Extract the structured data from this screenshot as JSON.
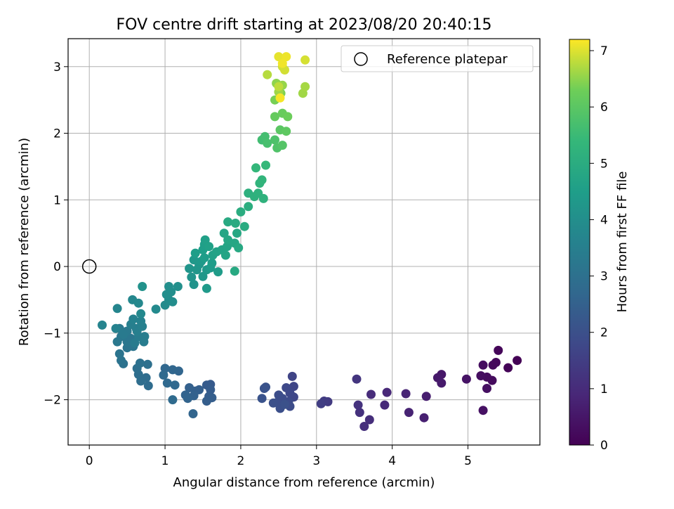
{
  "chart_data": {
    "type": "scatter",
    "title": "FOV centre drift starting at 2023/08/20 20:40:15",
    "xlabel": "Angular distance from reference (arcmin)",
    "ylabel": "Rotation from reference (arcmin)",
    "xlim": [
      -0.28,
      5.95
    ],
    "ylim": [
      -2.68,
      3.42
    ],
    "xticks": [
      0,
      1,
      2,
      3,
      4,
      5
    ],
    "yticks": [
      -2,
      -1,
      0,
      1,
      2,
      3
    ],
    "xtick_labels": [
      "0",
      "1",
      "2",
      "3",
      "4",
      "5"
    ],
    "ytick_labels": [
      "−2",
      "−1",
      "0",
      "1",
      "2",
      "3"
    ],
    "grid": true,
    "legend": {
      "placement": "top-right",
      "entries": [
        {
          "label": "Reference platepar",
          "marker": "open-circle"
        }
      ]
    },
    "reference_point": {
      "x": 0,
      "y": 0
    },
    "colorbar": {
      "label": "Hours from first FF file",
      "colormap": "viridis",
      "range": [
        0,
        7.2
      ],
      "ticks": [
        0,
        1,
        2,
        3,
        4,
        5,
        6,
        7
      ],
      "tick_labels": [
        "0",
        "1",
        "2",
        "3",
        "4",
        "5",
        "6",
        "7"
      ]
    },
    "points": [
      {
        "x": 5.65,
        "y": -1.41,
        "h": 0.03
      },
      {
        "x": 5.53,
        "y": -1.52,
        "h": 0.08
      },
      {
        "x": 5.4,
        "y": -1.26,
        "h": 0.12
      },
      {
        "x": 5.37,
        "y": -1.44,
        "h": 0.15
      },
      {
        "x": 5.33,
        "y": -1.48,
        "h": 0.18
      },
      {
        "x": 5.32,
        "y": -1.71,
        "h": 0.22
      },
      {
        "x": 5.25,
        "y": -1.66,
        "h": 0.25
      },
      {
        "x": 5.2,
        "y": -1.48,
        "h": 0.28
      },
      {
        "x": 5.17,
        "y": -1.64,
        "h": 0.3
      },
      {
        "x": 5.25,
        "y": -1.83,
        "h": 0.33
      },
      {
        "x": 5.2,
        "y": -2.16,
        "h": 0.37
      },
      {
        "x": 4.98,
        "y": -1.69,
        "h": 0.42
      },
      {
        "x": 4.65,
        "y": -1.62,
        "h": 0.5
      },
      {
        "x": 4.6,
        "y": -1.67,
        "h": 0.55
      },
      {
        "x": 4.65,
        "y": -1.75,
        "h": 0.6
      },
      {
        "x": 4.45,
        "y": -1.95,
        "h": 0.68
      },
      {
        "x": 4.42,
        "y": -2.27,
        "h": 0.72
      },
      {
        "x": 4.22,
        "y": -2.19,
        "h": 0.78
      },
      {
        "x": 4.18,
        "y": -1.91,
        "h": 0.83
      },
      {
        "x": 3.93,
        "y": -1.89,
        "h": 0.9
      },
      {
        "x": 3.9,
        "y": -2.08,
        "h": 0.95
      },
      {
        "x": 3.72,
        "y": -1.92,
        "h": 1.0
      },
      {
        "x": 3.7,
        "y": -2.3,
        "h": 1.05
      },
      {
        "x": 3.63,
        "y": -2.4,
        "h": 1.1
      },
      {
        "x": 3.57,
        "y": -2.19,
        "h": 1.15
      },
      {
        "x": 3.55,
        "y": -2.08,
        "h": 1.2
      },
      {
        "x": 3.53,
        "y": -1.69,
        "h": 1.25
      },
      {
        "x": 3.15,
        "y": -2.03,
        "h": 1.4
      },
      {
        "x": 3.1,
        "y": -2.02,
        "h": 1.45
      },
      {
        "x": 3.06,
        "y": -2.06,
        "h": 1.5
      },
      {
        "x": 2.68,
        "y": -1.65,
        "h": 1.65
      },
      {
        "x": 2.7,
        "y": -1.8,
        "h": 1.7
      },
      {
        "x": 2.7,
        "y": -1.96,
        "h": 1.75
      },
      {
        "x": 2.65,
        "y": -1.9,
        "h": 1.78
      },
      {
        "x": 2.6,
        "y": -1.82,
        "h": 1.8
      },
      {
        "x": 2.63,
        "y": -2.03,
        "h": 1.85
      },
      {
        "x": 2.65,
        "y": -2.1,
        "h": 1.88
      },
      {
        "x": 2.55,
        "y": -1.98,
        "h": 1.9
      },
      {
        "x": 2.5,
        "y": -1.93,
        "h": 1.93
      },
      {
        "x": 2.48,
        "y": -2.04,
        "h": 1.95
      },
      {
        "x": 2.52,
        "y": -2.13,
        "h": 1.98
      },
      {
        "x": 2.43,
        "y": -2.05,
        "h": 2.0
      },
      {
        "x": 2.58,
        "y": -2.07,
        "h": 2.02
      },
      {
        "x": 2.33,
        "y": -1.81,
        "h": 2.05
      },
      {
        "x": 2.31,
        "y": -1.83,
        "h": 2.08
      },
      {
        "x": 2.28,
        "y": -1.98,
        "h": 2.1
      },
      {
        "x": 1.6,
        "y": -1.77,
        "h": 2.3
      },
      {
        "x": 1.55,
        "y": -1.78,
        "h": 2.33
      },
      {
        "x": 1.6,
        "y": -1.85,
        "h": 2.35
      },
      {
        "x": 1.58,
        "y": -1.95,
        "h": 2.38
      },
      {
        "x": 1.62,
        "y": -1.97,
        "h": 2.4
      },
      {
        "x": 1.55,
        "y": -2.02,
        "h": 2.42
      },
      {
        "x": 1.45,
        "y": -1.85,
        "h": 2.45
      },
      {
        "x": 1.4,
        "y": -1.87,
        "h": 2.48
      },
      {
        "x": 1.32,
        "y": -1.82,
        "h": 2.5
      },
      {
        "x": 1.38,
        "y": -1.94,
        "h": 2.52
      },
      {
        "x": 1.27,
        "y": -1.93,
        "h": 2.55
      },
      {
        "x": 1.3,
        "y": -1.98,
        "h": 2.58
      },
      {
        "x": 1.37,
        "y": -2.21,
        "h": 2.6
      },
      {
        "x": 1.18,
        "y": -1.57,
        "h": 2.65
      },
      {
        "x": 1.1,
        "y": -1.55,
        "h": 2.68
      },
      {
        "x": 1.0,
        "y": -1.53,
        "h": 2.7
      },
      {
        "x": 1.13,
        "y": -1.78,
        "h": 2.73
      },
      {
        "x": 1.03,
        "y": -1.75,
        "h": 2.75
      },
      {
        "x": 0.98,
        "y": -1.63,
        "h": 2.78
      },
      {
        "x": 1.1,
        "y": -2.0,
        "h": 2.8
      },
      {
        "x": 0.78,
        "y": -1.79,
        "h": 2.85
      },
      {
        "x": 0.75,
        "y": -1.67,
        "h": 2.88
      },
      {
        "x": 0.68,
        "y": -1.72,
        "h": 2.9
      },
      {
        "x": 0.65,
        "y": -1.62,
        "h": 2.92
      },
      {
        "x": 0.63,
        "y": -1.53,
        "h": 2.95
      },
      {
        "x": 0.77,
        "y": -1.47,
        "h": 2.98
      },
      {
        "x": 0.67,
        "y": -1.45,
        "h": 3.0
      },
      {
        "x": 0.45,
        "y": -1.46,
        "h": 3.05
      },
      {
        "x": 0.42,
        "y": -1.41,
        "h": 3.08
      },
      {
        "x": 0.4,
        "y": -1.31,
        "h": 3.1
      },
      {
        "x": 0.5,
        "y": -1.22,
        "h": 3.13
      },
      {
        "x": 0.58,
        "y": -1.2,
        "h": 3.15
      },
      {
        "x": 0.5,
        "y": -1.13,
        "h": 3.18
      },
      {
        "x": 0.55,
        "y": -1.08,
        "h": 3.2
      },
      {
        "x": 0.42,
        "y": -1.05,
        "h": 3.23
      },
      {
        "x": 0.37,
        "y": -1.13,
        "h": 3.25
      },
      {
        "x": 0.5,
        "y": -0.97,
        "h": 3.28
      },
      {
        "x": 0.4,
        "y": -0.93,
        "h": 3.3
      },
      {
        "x": 0.45,
        "y": -1.02,
        "h": 3.33
      },
      {
        "x": 0.6,
        "y": -1.15,
        "h": 3.35
      },
      {
        "x": 0.65,
        "y": -1.05,
        "h": 3.38
      },
      {
        "x": 0.72,
        "y": -1.13,
        "h": 3.4
      },
      {
        "x": 0.73,
        "y": -1.05,
        "h": 3.42
      },
      {
        "x": 0.62,
        "y": -0.93,
        "h": 3.45
      },
      {
        "x": 0.55,
        "y": -0.87,
        "h": 3.48
      },
      {
        "x": 0.63,
        "y": -0.97,
        "h": 3.5
      },
      {
        "x": 0.7,
        "y": -0.9,
        "h": 3.52
      },
      {
        "x": 0.68,
        "y": -0.82,
        "h": 3.55
      },
      {
        "x": 0.58,
        "y": -0.79,
        "h": 3.58
      },
      {
        "x": 0.35,
        "y": -0.93,
        "h": 3.6
      },
      {
        "x": 0.17,
        "y": -0.88,
        "h": 3.65
      },
      {
        "x": 0.37,
        "y": -0.63,
        "h": 3.7
      },
      {
        "x": 0.57,
        "y": -0.5,
        "h": 3.75
      },
      {
        "x": 0.65,
        "y": -0.55,
        "h": 3.78
      },
      {
        "x": 0.68,
        "y": -0.71,
        "h": 3.8
      },
      {
        "x": 0.88,
        "y": -0.64,
        "h": 3.85
      },
      {
        "x": 1.0,
        "y": -0.58,
        "h": 3.9
      },
      {
        "x": 1.05,
        "y": -0.5,
        "h": 3.93
      },
      {
        "x": 1.1,
        "y": -0.53,
        "h": 3.95
      },
      {
        "x": 1.02,
        "y": -0.42,
        "h": 3.97
      },
      {
        "x": 1.08,
        "y": -0.38,
        "h": 4.0
      },
      {
        "x": 1.05,
        "y": -0.3,
        "h": 4.03
      },
      {
        "x": 1.17,
        "y": -0.3,
        "h": 4.05
      },
      {
        "x": 0.7,
        "y": -0.3,
        "h": 4.1
      },
      {
        "x": 1.38,
        "y": -0.27,
        "h": 4.15
      },
      {
        "x": 1.35,
        "y": -0.16,
        "h": 4.18
      },
      {
        "x": 1.32,
        "y": -0.03,
        "h": 4.2
      },
      {
        "x": 1.45,
        "y": 0.03,
        "h": 4.23
      },
      {
        "x": 1.42,
        "y": -0.05,
        "h": 4.25
      },
      {
        "x": 1.5,
        "y": -0.15,
        "h": 4.28
      },
      {
        "x": 1.38,
        "y": 0.1,
        "h": 4.3
      },
      {
        "x": 1.48,
        "y": 0.08,
        "h": 4.33
      },
      {
        "x": 1.55,
        "y": -0.05,
        "h": 4.35
      },
      {
        "x": 1.55,
        "y": -0.33,
        "h": 4.38
      },
      {
        "x": 1.6,
        "y": -0.02,
        "h": 4.4
      },
      {
        "x": 1.7,
        "y": -0.08,
        "h": 4.42
      },
      {
        "x": 1.62,
        "y": 0.05,
        "h": 4.45
      },
      {
        "x": 1.52,
        "y": 0.13,
        "h": 4.48
      },
      {
        "x": 1.4,
        "y": 0.2,
        "h": 4.5
      },
      {
        "x": 1.5,
        "y": 0.25,
        "h": 4.52
      },
      {
        "x": 1.52,
        "y": 0.33,
        "h": 4.55
      },
      {
        "x": 1.53,
        "y": 0.4,
        "h": 4.58
      },
      {
        "x": 1.58,
        "y": 0.3,
        "h": 4.6
      },
      {
        "x": 1.63,
        "y": 0.17,
        "h": 4.62
      },
      {
        "x": 1.68,
        "y": 0.22,
        "h": 4.65
      },
      {
        "x": 1.75,
        "y": 0.25,
        "h": 4.68
      },
      {
        "x": 1.82,
        "y": 0.3,
        "h": 4.7
      },
      {
        "x": 1.8,
        "y": 0.17,
        "h": 4.72
      },
      {
        "x": 1.78,
        "y": 0.5,
        "h": 4.75
      },
      {
        "x": 1.83,
        "y": 0.4,
        "h": 4.78
      },
      {
        "x": 1.92,
        "y": 0.35,
        "h": 4.8
      },
      {
        "x": 1.95,
        "y": 0.5,
        "h": 4.82
      },
      {
        "x": 1.97,
        "y": 0.28,
        "h": 4.85
      },
      {
        "x": 1.92,
        "y": -0.07,
        "h": 4.88
      },
      {
        "x": 1.83,
        "y": 0.67,
        "h": 4.9
      },
      {
        "x": 1.93,
        "y": 0.65,
        "h": 4.93
      },
      {
        "x": 2.05,
        "y": 0.6,
        "h": 4.95
      },
      {
        "x": 2.0,
        "y": 0.82,
        "h": 5.0
      },
      {
        "x": 2.1,
        "y": 0.9,
        "h": 5.05
      },
      {
        "x": 2.1,
        "y": 1.1,
        "h": 5.1
      },
      {
        "x": 2.18,
        "y": 1.05,
        "h": 5.15
      },
      {
        "x": 2.23,
        "y": 1.1,
        "h": 5.18
      },
      {
        "x": 2.3,
        "y": 1.02,
        "h": 5.2
      },
      {
        "x": 2.25,
        "y": 1.25,
        "h": 5.25
      },
      {
        "x": 2.28,
        "y": 1.3,
        "h": 5.28
      },
      {
        "x": 2.2,
        "y": 1.48,
        "h": 5.35
      },
      {
        "x": 2.33,
        "y": 1.52,
        "h": 5.4
      },
      {
        "x": 2.28,
        "y": 1.9,
        "h": 5.6
      },
      {
        "x": 2.32,
        "y": 1.95,
        "h": 5.65
      },
      {
        "x": 2.35,
        "y": 1.85,
        "h": 5.7
      },
      {
        "x": 2.45,
        "y": 1.9,
        "h": 5.8
      },
      {
        "x": 2.48,
        "y": 1.78,
        "h": 5.85
      },
      {
        "x": 2.55,
        "y": 1.82,
        "h": 5.9
      },
      {
        "x": 2.52,
        "y": 2.05,
        "h": 6.0
      },
      {
        "x": 2.6,
        "y": 2.03,
        "h": 6.05
      },
      {
        "x": 2.45,
        "y": 2.25,
        "h": 6.15
      },
      {
        "x": 2.55,
        "y": 2.3,
        "h": 6.2
      },
      {
        "x": 2.62,
        "y": 2.25,
        "h": 6.25
      },
      {
        "x": 2.45,
        "y": 2.5,
        "h": 6.35
      },
      {
        "x": 2.53,
        "y": 2.6,
        "h": 6.4
      },
      {
        "x": 2.47,
        "y": 2.75,
        "h": 6.5
      },
      {
        "x": 2.55,
        "y": 2.72,
        "h": 6.55
      },
      {
        "x": 2.5,
        "y": 2.62,
        "h": 6.6
      },
      {
        "x": 2.82,
        "y": 2.6,
        "h": 6.62
      },
      {
        "x": 2.85,
        "y": 2.7,
        "h": 6.65
      },
      {
        "x": 2.35,
        "y": 2.88,
        "h": 6.75
      },
      {
        "x": 2.5,
        "y": 2.7,
        "h": 6.8
      },
      {
        "x": 2.55,
        "y": 3.0,
        "h": 6.9
      },
      {
        "x": 2.58,
        "y": 2.95,
        "h": 6.93
      },
      {
        "x": 2.85,
        "y": 3.1,
        "h": 6.95
      },
      {
        "x": 2.5,
        "y": 3.15,
        "h": 7.05
      },
      {
        "x": 2.6,
        "y": 3.15,
        "h": 7.1
      },
      {
        "x": 2.55,
        "y": 3.05,
        "h": 7.12
      },
      {
        "x": 2.52,
        "y": 2.53,
        "h": 7.15
      }
    ]
  }
}
